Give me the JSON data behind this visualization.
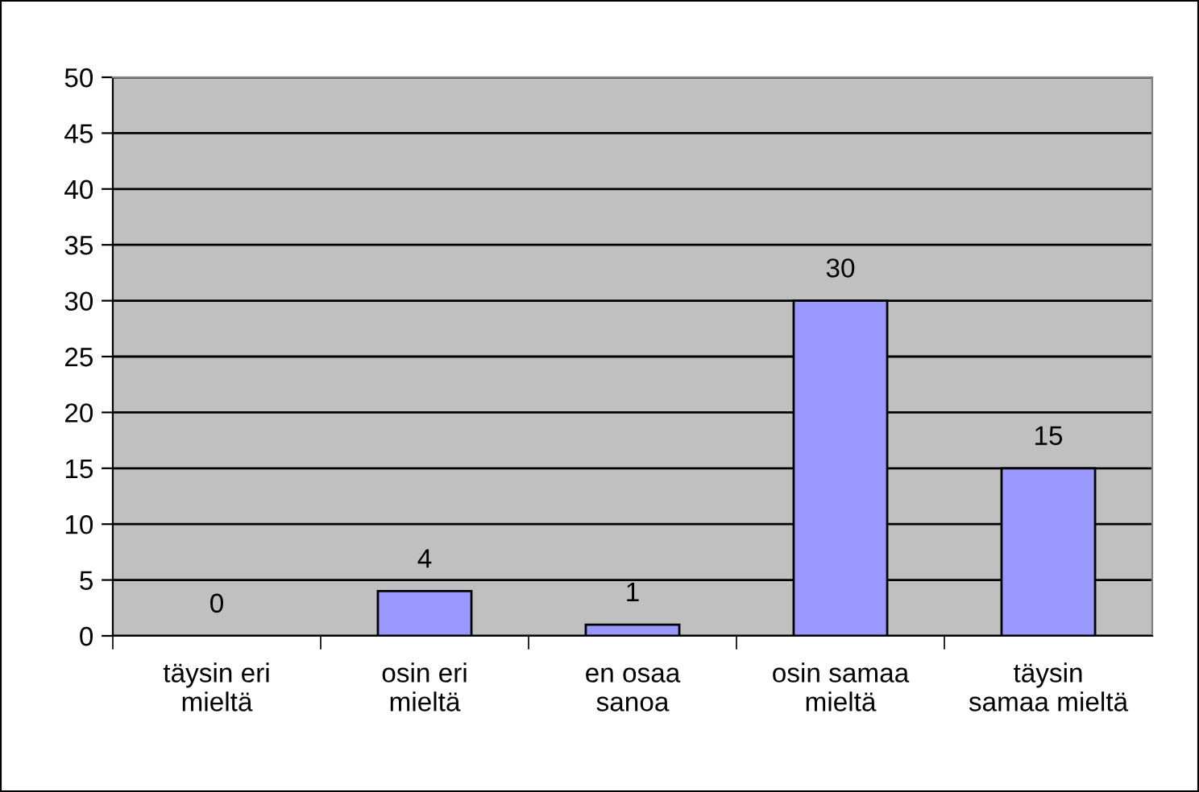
{
  "chart_data": {
    "type": "bar",
    "categories": [
      "täysin eri\nmieltä",
      "osin eri\nmieltä",
      "en osaa\nsanoa",
      "osin samaa\nmieltä",
      "täysin\nsamaa mieltä"
    ],
    "values": [
      0,
      4,
      1,
      30,
      15
    ],
    "color": "#9999ff",
    "ylim": [
      0,
      50
    ],
    "yticks": [
      0,
      5,
      10,
      15,
      20,
      25,
      30,
      35,
      40,
      45,
      50
    ],
    "grid": "y",
    "data_labels": true,
    "legend": false
  }
}
